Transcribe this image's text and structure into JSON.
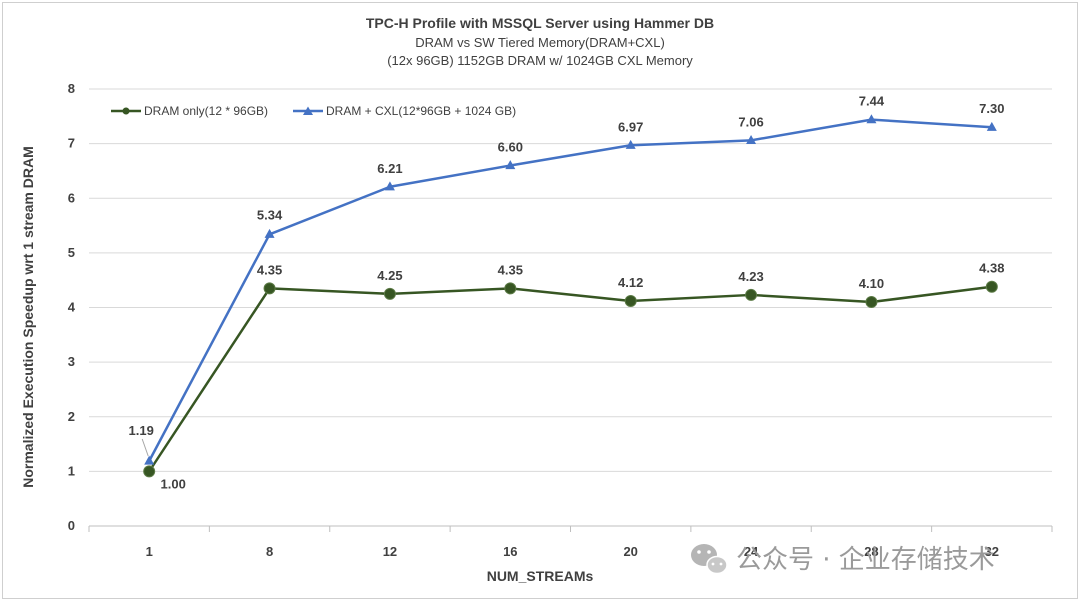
{
  "chart_data": {
    "type": "line",
    "title": "TPC-H Profile with MSSQL Server using Hammer DB",
    "subtitle_lines": [
      "DRAM vs SW Tiered Memory(DRAM+CXL)",
      "(12x 96GB) 1152GB DRAM w/ 1024GB CXL Memory"
    ],
    "xlabel": "NUM_STREAMs",
    "ylabel": "Normalized Execution Speedup wrt 1 stream DRAM",
    "categories": [
      "1",
      "8",
      "12",
      "16",
      "20",
      "24",
      "28",
      "32"
    ],
    "ylim": [
      0,
      8
    ],
    "yticks": [
      "0",
      "1",
      "2",
      "3",
      "4",
      "5",
      "6",
      "7",
      "8"
    ],
    "grid": "horizontal",
    "legend_position": "top-left",
    "series": [
      {
        "name": "DRAM only(12 * 96GB)",
        "values": [
          1.0,
          4.35,
          4.25,
          4.35,
          4.12,
          4.23,
          4.1,
          4.38
        ],
        "labels": [
          "1.00",
          "4.35",
          "4.25",
          "4.35",
          "4.12",
          "4.23",
          "4.10",
          "4.38"
        ],
        "color": "#375623",
        "marker": "circle"
      },
      {
        "name": "DRAM + CXL(12*96GB + 1024 GB)",
        "values": [
          1.19,
          5.34,
          6.21,
          6.6,
          6.97,
          7.06,
          7.44,
          7.3
        ],
        "labels": [
          "1.19",
          "5.34",
          "6.21",
          "6.60",
          "6.97",
          "7.06",
          "7.44",
          "7.30"
        ],
        "color": "#4472C4",
        "marker": "triangle"
      }
    ]
  },
  "watermark": {
    "text": "公众号 · 企业存储技术",
    "icon": "wechat-icon"
  },
  "colors": {
    "gridline": "#d9d9d9",
    "axis": "#bfbfbf",
    "text": "#404040"
  }
}
